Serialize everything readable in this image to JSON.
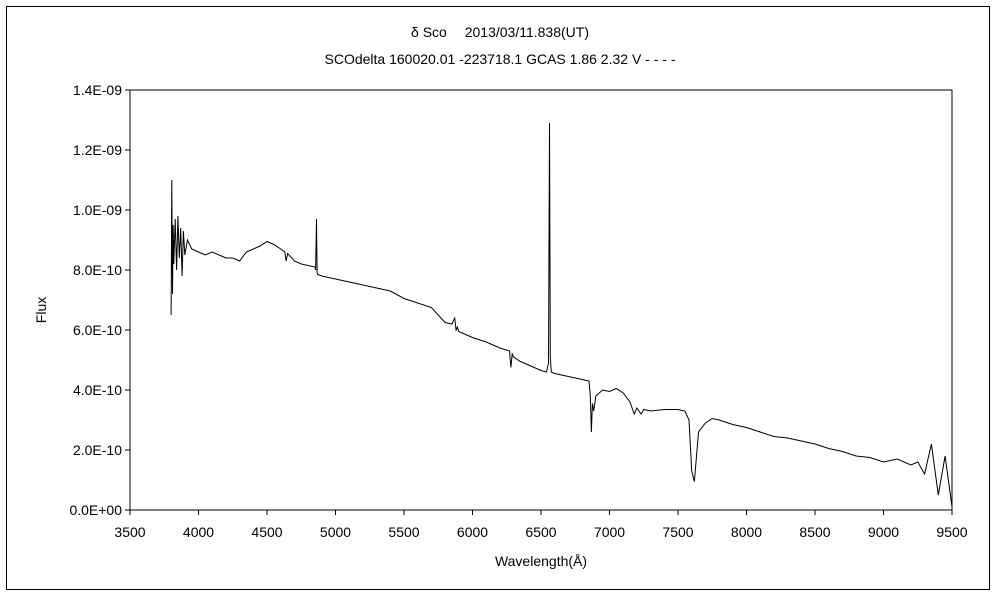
{
  "chart_data": {
    "type": "line",
    "title": "δ Sco　 2013/03/11.838(UT)",
    "subtitle": "SCOdelta 160020.01 -223718.1 GCAS 1.86 2.32 V - - - -",
    "xlabel": "Wavelength(Å)",
    "ylabel": "Flux",
    "xlim": [
      3500,
      9500
    ],
    "ylim": [
      0,
      1.4e-09
    ],
    "x_ticks": [
      "3500",
      "4000",
      "4500",
      "5000",
      "5500",
      "6000",
      "6500",
      "7000",
      "7500",
      "8000",
      "8500",
      "9000",
      "9500"
    ],
    "x_tick_values": [
      3500,
      4000,
      4500,
      5000,
      5500,
      6000,
      6500,
      7000,
      7500,
      8000,
      8500,
      9000,
      9500
    ],
    "y_ticks": [
      "0.0E+00",
      "2.0E-10",
      "4.0E-10",
      "6.0E-10",
      "8.0E-10",
      "1.0E-09",
      "1.2E-09",
      "1.4E-09"
    ],
    "y_tick_values": [
      0,
      2e-10,
      4e-10,
      6e-10,
      8e-10,
      1e-09,
      1.2e-09,
      1.4e-09
    ],
    "grid": false,
    "line_color": "#000000",
    "series": [
      {
        "x": [
          3800,
          3805,
          3810,
          3815,
          3820,
          3830,
          3840,
          3850,
          3860,
          3870,
          3880,
          3890,
          3900,
          3920,
          3950,
          4000,
          4050,
          4100,
          4150,
          4200,
          4250,
          4300,
          4350,
          4400,
          4450,
          4500,
          4550,
          4600,
          4630,
          4640,
          4650,
          4700,
          4750,
          4800,
          4850,
          4855,
          4861,
          4866,
          4870,
          4900,
          4950,
          5000,
          5100,
          5200,
          5300,
          5400,
          5500,
          5600,
          5700,
          5800,
          5850,
          5870,
          5880,
          5890,
          5900,
          5950,
          6000,
          6100,
          6200,
          6270,
          6280,
          6290,
          6300,
          6350,
          6400,
          6500,
          6540,
          6555,
          6562,
          6568,
          6575,
          6600,
          6700,
          6800,
          6850,
          6860,
          6868,
          6875,
          6885,
          6900,
          6950,
          7000,
          7050,
          7100,
          7150,
          7180,
          7200,
          7230,
          7250,
          7300,
          7400,
          7500,
          7550,
          7580,
          7600,
          7620,
          7650,
          7700,
          7750,
          7800,
          7900,
          8000,
          8100,
          8200,
          8300,
          8400,
          8500,
          8600,
          8700,
          8800,
          8900,
          9000,
          9100,
          9200,
          9250,
          9300,
          9350,
          9400,
          9450,
          9500
        ],
        "y": [
          6.5e-10,
          1.1e-09,
          7.2e-10,
          9.5e-10,
          8.2e-10,
          9.7e-10,
          8e-10,
          9.8e-10,
          8.4e-10,
          9.4e-10,
          7.8e-10,
          9.3e-10,
          8.5e-10,
          9e-10,
          8.7e-10,
          8.6e-10,
          8.5e-10,
          8.6e-10,
          8.5e-10,
          8.4e-10,
          8.4e-10,
          8.3e-10,
          8.6e-10,
          8.7e-10,
          8.8e-10,
          8.95e-10,
          8.85e-10,
          8.7e-10,
          8.6e-10,
          8.3e-10,
          8.55e-10,
          8.3e-10,
          8.2e-10,
          8.15e-10,
          8.1e-10,
          8e-10,
          9.7e-10,
          7.9e-10,
          7.85e-10,
          7.8e-10,
          7.75e-10,
          7.7e-10,
          7.6e-10,
          7.5e-10,
          7.4e-10,
          7.3e-10,
          7.05e-10,
          6.9e-10,
          6.75e-10,
          6.25e-10,
          6.2e-10,
          6.4e-10,
          6e-10,
          6.1e-10,
          5.95e-10,
          5.85e-10,
          5.75e-10,
          5.6e-10,
          5.4e-10,
          5.3e-10,
          4.75e-10,
          5.2e-10,
          5.1e-10,
          4.95e-10,
          4.85e-10,
          4.65e-10,
          4.6e-10,
          4.9e-10,
          1.29e-09,
          5.1e-10,
          4.6e-10,
          4.55e-10,
          4.45e-10,
          4.35e-10,
          4.3e-10,
          3.8e-10,
          2.6e-10,
          3.55e-10,
          3.3e-10,
          3.8e-10,
          4e-10,
          3.95e-10,
          4.05e-10,
          3.9e-10,
          3.6e-10,
          3.2e-10,
          3.4e-10,
          3.2e-10,
          3.35e-10,
          3.3e-10,
          3.35e-10,
          3.35e-10,
          3.3e-10,
          3e-10,
          1.3e-10,
          9.5e-11,
          2.6e-10,
          2.9e-10,
          3.05e-10,
          3e-10,
          2.85e-10,
          2.75e-10,
          2.6e-10,
          2.45e-10,
          2.4e-10,
          2.3e-10,
          2.2e-10,
          2.05e-10,
          1.95e-10,
          1.8e-10,
          1.75e-10,
          1.6e-10,
          1.7e-10,
          1.5e-10,
          1.6e-10,
          1.2e-10,
          2.2e-10,
          5e-11,
          1.8e-10,
          1e-11
        ]
      }
    ]
  }
}
